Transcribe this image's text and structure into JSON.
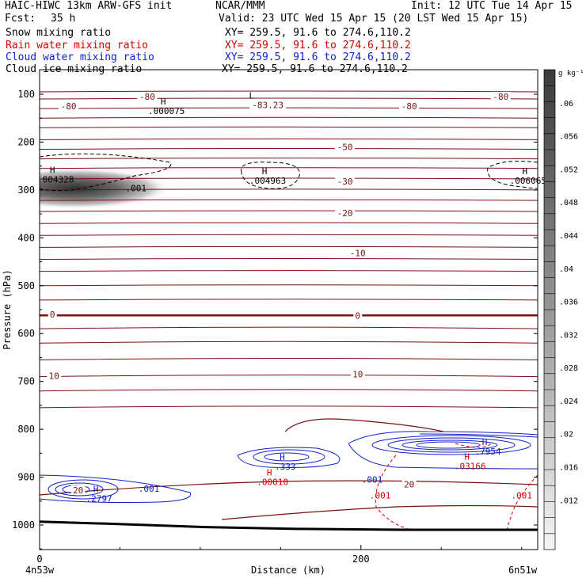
{
  "header": {
    "title": "HAIC-HIWC 13km ARW-GFS init",
    "org": "NCAR/MMM",
    "init": "Init: 12 UTC Tue 14 Apr 15",
    "fcst_label": "Fcst:",
    "fcst_value": "35 h",
    "valid": "Valid: 23 UTC Wed 15 Apr 15 (20 LST Wed 15 Apr 15)"
  },
  "fields": [
    {
      "name": "Snow mixing ratio",
      "xy": "XY= 259.5, 91.6 to 274.6,110.2",
      "color": "#000000"
    },
    {
      "name": "Rain water mixing ratio",
      "xy": "XY= 259.5, 91.6 to 274.6,110.2",
      "color": "#d40000"
    },
    {
      "name": "Cloud water mixing ratio",
      "xy": "XY= 259.5, 91.6 to 274.6,110.2",
      "color": "#1020c8"
    },
    {
      "name": "Cloud ice mixing ratio",
      "xy": "XY= 259.5, 91.6 to 274.6,110.2",
      "color": "#000000"
    }
  ],
  "chart_data": {
    "type": "contour cross-section",
    "xlabel": "Distance (km)",
    "ylabel": "Pressure (hPa)",
    "xlim": [
      0,
      310
    ],
    "ylim": [
      1050,
      50
    ],
    "x_ticks": [
      "0",
      "200"
    ],
    "y_ticks": [
      "100",
      "200",
      "300",
      "400",
      "500",
      "600",
      "700",
      "800",
      "900",
      "1000"
    ],
    "y_tick_values": [
      100,
      200,
      300,
      400,
      500,
      600,
      700,
      800,
      900,
      1000
    ],
    "x_endpoint_labels": [
      "4n53w",
      "6n51w"
    ],
    "colorbar": {
      "unit": "g kg⁻¹",
      "labels": [
        ".06",
        ".056",
        ".052",
        ".048",
        ".044",
        ".04",
        ".036",
        ".032",
        ".028",
        ".024",
        ".02",
        ".016",
        ".012"
      ],
      "values": [
        0.06,
        0.056,
        0.052,
        0.048,
        0.044,
        0.04,
        0.036,
        0.032,
        0.028,
        0.024,
        0.02,
        0.016,
        0.012
      ]
    },
    "temperature_labels": [
      {
        "text": "-80",
        "x": 67,
        "p": 105
      },
      {
        "text": "-80",
        "x": 18,
        "p": 125
      },
      {
        "text": "-83.23",
        "x": 142,
        "p": 122
      },
      {
        "text": "-80",
        "x": 230,
        "p": 125
      },
      {
        "text": "-80",
        "x": 287,
        "p": 105
      },
      {
        "text": "-50",
        "x": 190,
        "p": 210
      },
      {
        "text": "-30",
        "x": 190,
        "p": 282
      },
      {
        "text": "-20",
        "x": 190,
        "p": 348
      },
      {
        "text": "-10",
        "x": 198,
        "p": 432
      },
      {
        "text": "0",
        "x": 8,
        "p": 560
      },
      {
        "text": "0",
        "x": 198,
        "p": 562
      },
      {
        "text": "10",
        "x": 9,
        "p": 688
      },
      {
        "text": "10",
        "x": 198,
        "p": 685
      },
      {
        "text": "20",
        "x": 24,
        "p": 927
      },
      {
        "text": "20",
        "x": 230,
        "p": 915
      }
    ],
    "extrema_labels": [
      {
        "mark": "H",
        "value": ".004328",
        "x": 8,
        "p": 268,
        "color": "#000000"
      },
      {
        "mark": "H",
        "value": ".004963",
        "x": 140,
        "p": 270,
        "color": "#000000"
      },
      {
        "mark": "H",
        "value": ".006065",
        "x": 302,
        "p": 270,
        "color": "#000000"
      },
      {
        "mark": "H",
        "value": ".000075",
        "x": 77,
        "p": 125,
        "color": "#000000"
      },
      {
        "mark": "L",
        "value": "",
        "x": 132,
        "p": 112,
        "color": "#000000"
      },
      {
        "mark": "",
        "value": ".001",
        "x": 60,
        "p": 286,
        "color": "#000000"
      },
      {
        "mark": "H",
        "value": ".2797",
        "x": 35,
        "p": 935,
        "color": "#1020c8"
      },
      {
        "mark": "",
        "value": ".001",
        "x": 68,
        "p": 914,
        "color": "#1020c8"
      },
      {
        "mark": "H",
        "value": ".333",
        "x": 151,
        "p": 868,
        "color": "#1020c8"
      },
      {
        "mark": "",
        "value": ".001",
        "x": 207,
        "p": 895,
        "color": "#1020c8"
      },
      {
        "mark": "H",
        "value": ".7954",
        "x": 277,
        "p": 836,
        "color": "#1020c8"
      },
      {
        "mark": "H",
        "value": ".00010",
        "x": 143,
        "p": 900,
        "color": "#d40000"
      },
      {
        "mark": "H",
        "value": ".03166",
        "x": 266,
        "p": 867,
        "color": "#d40000"
      },
      {
        "mark": "",
        "value": ".001",
        "x": 212,
        "p": 928,
        "color": "#d40000"
      },
      {
        "mark": "",
        "value": ".001",
        "x": 300,
        "p": 928,
        "color": "#d40000"
      }
    ],
    "isotherms_p": [
      95,
      110,
      130,
      150,
      170,
      195,
      215,
      235,
      255,
      277,
      300,
      322,
      345,
      370,
      395,
      420,
      445,
      470,
      500,
      530
    ],
    "isotherms_below_0_p": [
      590,
      620,
      655,
      690,
      720,
      755
    ],
    "zero_isotherm_p": 562,
    "surface_p": [
      [
        0,
        993
      ],
      [
        40,
        997
      ],
      [
        100,
        1004
      ],
      [
        160,
        1008
      ],
      [
        230,
        1010
      ],
      [
        310,
        1010
      ]
    ]
  }
}
